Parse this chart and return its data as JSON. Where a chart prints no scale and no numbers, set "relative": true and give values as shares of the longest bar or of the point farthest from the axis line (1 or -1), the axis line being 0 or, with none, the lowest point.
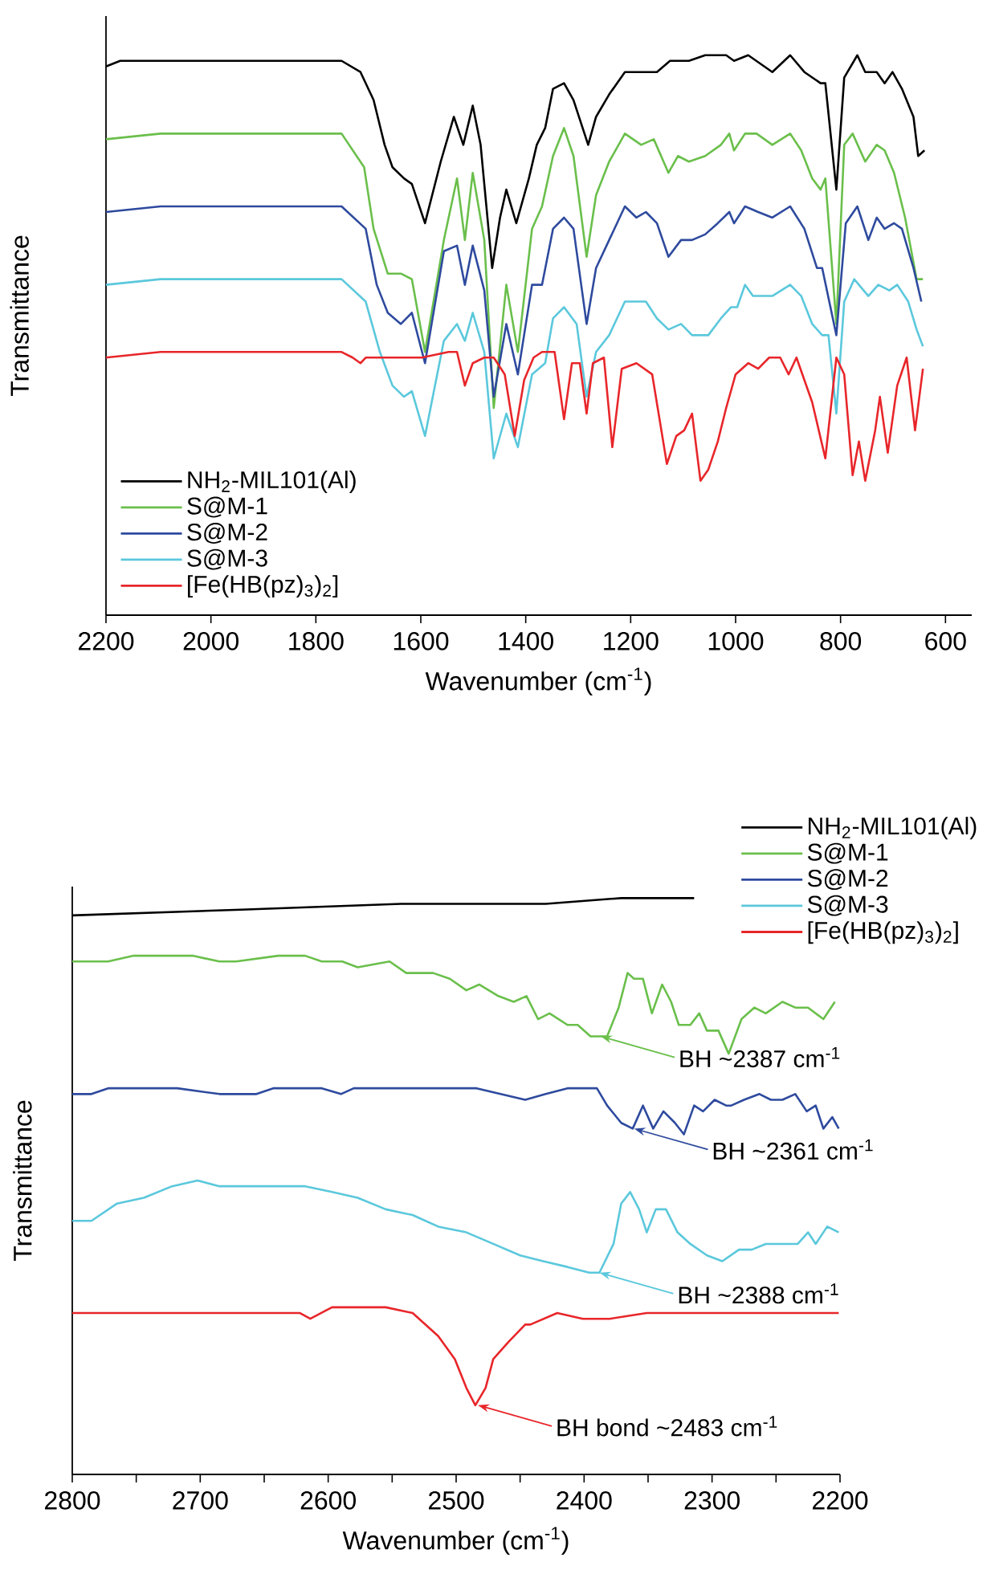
{
  "chart_data": [
    {
      "type": "line",
      "relative": true,
      "xlabel": "Wavenumber (cm$^{-1}$)",
      "ylabel": "Transmittance",
      "xlim": [
        2200,
        550
      ],
      "xticks": [
        2200,
        2000,
        1800,
        1600,
        1400,
        1200,
        1000,
        800,
        600
      ],
      "legend": "bottom left",
      "series": [
        {
          "name": "NH$_{2}$-MIL101(Al)",
          "color": "#000000",
          "x": [
            2200,
            2173,
            2157,
            2096,
            1944,
            1751,
            1715,
            1690,
            1669,
            1654,
            1632,
            1617,
            1592,
            1562,
            1537,
            1519,
            1501,
            1486,
            1464,
            1449,
            1437,
            1418,
            1394,
            1379,
            1363,
            1348,
            1327,
            1309,
            1281,
            1266,
            1241,
            1211,
            1189,
            1171,
            1150,
            1125,
            1089,
            1058,
            1018,
            1003,
            976,
            930,
            896,
            869,
            838,
            829,
            808,
            793,
            768,
            753,
            731,
            716,
            701,
            683,
            661,
            652,
            640
          ],
          "values": [
            0.98,
            0.99,
            0.99,
            0.99,
            0.99,
            0.99,
            0.97,
            0.92,
            0.84,
            0.8,
            0.78,
            0.77,
            0.7,
            0.81,
            0.89,
            0.84,
            0.91,
            0.84,
            0.62,
            0.71,
            0.76,
            0.7,
            0.78,
            0.84,
            0.87,
            0.94,
            0.95,
            0.92,
            0.84,
            0.89,
            0.93,
            0.97,
            0.97,
            0.97,
            0.97,
            0.99,
            0.99,
            1.0,
            1.0,
            0.99,
            1.0,
            0.97,
            1.0,
            0.97,
            0.95,
            0.95,
            0.76,
            0.96,
            1.0,
            0.97,
            0.97,
            0.95,
            0.97,
            0.94,
            0.89,
            0.82,
            0.83
          ]
        },
        {
          "name": "S@M-1",
          "color": "#6abf4b",
          "x": [
            2200,
            2096,
            1944,
            1751,
            1708,
            1690,
            1663,
            1638,
            1617,
            1592,
            1556,
            1531,
            1516,
            1501,
            1479,
            1461,
            1437,
            1415,
            1388,
            1369,
            1348,
            1327,
            1309,
            1284,
            1266,
            1241,
            1211,
            1180,
            1156,
            1128,
            1110,
            1089,
            1058,
            1028,
            1012,
            1003,
            982,
            960,
            930,
            896,
            875,
            854,
            838,
            829,
            808,
            793,
            777,
            753,
            731,
            716,
            698,
            677,
            655,
            643
          ],
          "values": [
            0.85,
            0.86,
            0.86,
            0.86,
            0.8,
            0.69,
            0.61,
            0.61,
            0.6,
            0.47,
            0.67,
            0.78,
            0.67,
            0.79,
            0.67,
            0.37,
            0.59,
            0.47,
            0.69,
            0.73,
            0.82,
            0.87,
            0.82,
            0.64,
            0.75,
            0.81,
            0.86,
            0.84,
            0.85,
            0.79,
            0.82,
            0.81,
            0.82,
            0.84,
            0.86,
            0.83,
            0.86,
            0.86,
            0.84,
            0.86,
            0.83,
            0.78,
            0.76,
            0.78,
            0.52,
            0.84,
            0.86,
            0.81,
            0.84,
            0.83,
            0.79,
            0.71,
            0.6,
            0.6
          ]
        },
        {
          "name": "S@M-2",
          "color": "#2e4a9e",
          "x": [
            2200,
            2096,
            1944,
            1751,
            1705,
            1684,
            1663,
            1638,
            1617,
            1592,
            1556,
            1531,
            1516,
            1501,
            1479,
            1461,
            1437,
            1415,
            1388,
            1369,
            1348,
            1327,
            1309,
            1284,
            1266,
            1241,
            1211,
            1189,
            1171,
            1150,
            1128,
            1104,
            1083,
            1058,
            1034,
            1012,
            1003,
            982,
            957,
            930,
            896,
            869,
            845,
            835,
            808,
            790,
            768,
            747,
            731,
            716,
            698,
            683,
            661,
            646
          ],
          "values": [
            0.72,
            0.73,
            0.73,
            0.73,
            0.69,
            0.59,
            0.54,
            0.52,
            0.54,
            0.45,
            0.65,
            0.66,
            0.59,
            0.66,
            0.58,
            0.39,
            0.52,
            0.43,
            0.59,
            0.59,
            0.69,
            0.71,
            0.69,
            0.52,
            0.62,
            0.67,
            0.73,
            0.71,
            0.72,
            0.7,
            0.64,
            0.67,
            0.67,
            0.68,
            0.7,
            0.72,
            0.7,
            0.73,
            0.72,
            0.71,
            0.73,
            0.69,
            0.62,
            0.62,
            0.5,
            0.7,
            0.73,
            0.67,
            0.71,
            0.69,
            0.7,
            0.69,
            0.62,
            0.56
          ]
        },
        {
          "name": "S@M-3",
          "color": "#5bc8dc",
          "x": [
            2200,
            2096,
            1944,
            1751,
            1705,
            1678,
            1654,
            1632,
            1617,
            1592,
            1556,
            1531,
            1516,
            1501,
            1479,
            1461,
            1437,
            1415,
            1388,
            1363,
            1348,
            1327,
            1303,
            1284,
            1266,
            1241,
            1211,
            1189,
            1171,
            1150,
            1128,
            1104,
            1083,
            1052,
            1028,
            1009,
            997,
            982,
            967,
            930,
            896,
            875,
            854,
            835,
            823,
            808,
            793,
            774,
            747,
            728,
            707,
            692,
            671,
            655,
            643
          ],
          "values": [
            0.59,
            0.6,
            0.6,
            0.6,
            0.56,
            0.47,
            0.41,
            0.39,
            0.4,
            0.32,
            0.49,
            0.52,
            0.49,
            0.54,
            0.47,
            0.28,
            0.36,
            0.3,
            0.43,
            0.45,
            0.53,
            0.55,
            0.52,
            0.39,
            0.47,
            0.5,
            0.56,
            0.56,
            0.56,
            0.53,
            0.51,
            0.52,
            0.5,
            0.5,
            0.53,
            0.55,
            0.55,
            0.59,
            0.57,
            0.57,
            0.59,
            0.57,
            0.52,
            0.5,
            0.5,
            0.36,
            0.56,
            0.6,
            0.57,
            0.59,
            0.58,
            0.59,
            0.56,
            0.51,
            0.48
          ]
        },
        {
          "name": "[Fe(HB(pz)$_{3}$)$_{2}$]",
          "color": "#e8262a",
          "x": [
            2200,
            2096,
            1944,
            1751,
            1730,
            1715,
            1705,
            1669,
            1629,
            1598,
            1547,
            1531,
            1516,
            1501,
            1479,
            1461,
            1440,
            1421,
            1403,
            1385,
            1369,
            1345,
            1327,
            1312,
            1297,
            1284,
            1272,
            1251,
            1235,
            1217,
            1189,
            1159,
            1131,
            1113,
            1098,
            1083,
            1067,
            1052,
            1034,
            1018,
            1000,
            976,
            957,
            936,
            915,
            899,
            884,
            854,
            829,
            808,
            793,
            777,
            765,
            753,
            734,
            725,
            710,
            692,
            674,
            658,
            643
          ],
          "values": [
            0.46,
            0.47,
            0.47,
            0.47,
            0.46,
            0.45,
            0.46,
            0.46,
            0.46,
            0.46,
            0.47,
            0.47,
            0.41,
            0.45,
            0.46,
            0.46,
            0.43,
            0.32,
            0.42,
            0.46,
            0.47,
            0.47,
            0.35,
            0.45,
            0.45,
            0.36,
            0.45,
            0.46,
            0.3,
            0.44,
            0.45,
            0.43,
            0.27,
            0.32,
            0.33,
            0.36,
            0.24,
            0.26,
            0.31,
            0.37,
            0.43,
            0.45,
            0.44,
            0.46,
            0.46,
            0.43,
            0.46,
            0.38,
            0.28,
            0.46,
            0.43,
            0.25,
            0.31,
            0.24,
            0.33,
            0.39,
            0.29,
            0.41,
            0.46,
            0.33,
            0.44
          ]
        }
      ]
    },
    {
      "type": "line",
      "relative": true,
      "xlabel": "Wavenumber (cm$^{-1}$)",
      "ylabel": "Transmittance",
      "xlim": [
        2800,
        2200
      ],
      "xticks": [
        2800,
        {
          "value": 2750,
          "label": null
        },
        2700,
        {
          "value": 2650,
          "label": null
        },
        2600,
        {
          "value": 2550,
          "label": null
        },
        2500,
        {
          "value": 2450,
          "label": null
        },
        2400,
        {
          "value": 2350,
          "label": null
        },
        2300,
        {
          "value": 2250,
          "label": null
        },
        2200
      ],
      "legend": "top right",
      "annotations": [
        {
          "text": "BH ~2387 cm$^{-1}$",
          "x": 2387,
          "y": 0.76
        },
        {
          "text": "BH ~2361 cm$^{-1}$",
          "x": 2361,
          "y": 0.6
        },
        {
          "text": "BH ~2388 cm$^{-1}$",
          "x": 2388,
          "y": 0.35
        },
        {
          "text": "BH bond ~2483 cm$^{-1}$",
          "x": 2483,
          "y": 0.12
        }
      ],
      "series": [
        {
          "name": "NH$_{2}$-MIL101(Al)",
          "color": "#000000",
          "x": [
            2800,
            2668,
            2543,
            2430,
            2371,
            2346,
            2314
          ],
          "values": [
            0.97,
            0.98,
            0.99,
            0.99,
            1.0,
            1.0,
            1.0
          ]
        },
        {
          "name": "S@M-1",
          "color": "#6abf4b",
          "x": [
            2800,
            2785,
            2781,
            2772,
            2752,
            2727,
            2706,
            2685,
            2672,
            2639,
            2618,
            2605,
            2589,
            2577,
            2552,
            2539,
            2518,
            2505,
            2492,
            2482,
            2467,
            2455,
            2445,
            2436,
            2427,
            2413,
            2405,
            2395,
            2382,
            2373,
            2366,
            2361,
            2354,
            2347,
            2339,
            2332,
            2326,
            2317,
            2310,
            2304,
            2295,
            2287,
            2277,
            2267,
            2258,
            2245,
            2235,
            2225,
            2213,
            2204
          ],
          "values": [
            0.89,
            0.89,
            0.89,
            0.89,
            0.9,
            0.9,
            0.9,
            0.89,
            0.89,
            0.9,
            0.9,
            0.89,
            0.89,
            0.88,
            0.89,
            0.87,
            0.87,
            0.86,
            0.84,
            0.85,
            0.83,
            0.82,
            0.83,
            0.79,
            0.8,
            0.78,
            0.78,
            0.76,
            0.76,
            0.81,
            0.87,
            0.86,
            0.86,
            0.8,
            0.85,
            0.82,
            0.78,
            0.78,
            0.8,
            0.77,
            0.77,
            0.73,
            0.79,
            0.81,
            0.8,
            0.82,
            0.81,
            0.81,
            0.79,
            0.82
          ]
        },
        {
          "name": "S@M-2",
          "color": "#2e4a9e",
          "x": [
            2800,
            2785,
            2772,
            2744,
            2718,
            2685,
            2656,
            2643,
            2605,
            2590,
            2580,
            2555,
            2514,
            2484,
            2446,
            2430,
            2413,
            2390,
            2382,
            2371,
            2362,
            2354,
            2346,
            2338,
            2329,
            2322,
            2314,
            2307,
            2298,
            2289,
            2285,
            2275,
            2263,
            2254,
            2245,
            2235,
            2226,
            2219,
            2213,
            2206,
            2201
          ],
          "values": [
            0.66,
            0.66,
            0.67,
            0.67,
            0.67,
            0.66,
            0.66,
            0.67,
            0.67,
            0.66,
            0.67,
            0.67,
            0.67,
            0.67,
            0.65,
            0.66,
            0.67,
            0.67,
            0.64,
            0.61,
            0.6,
            0.64,
            0.6,
            0.63,
            0.61,
            0.59,
            0.64,
            0.63,
            0.65,
            0.64,
            0.64,
            0.65,
            0.66,
            0.65,
            0.65,
            0.66,
            0.63,
            0.64,
            0.6,
            0.62,
            0.6
          ]
        },
        {
          "name": "S@M-3",
          "color": "#5bc8dc",
          "x": [
            2800,
            2785,
            2765,
            2744,
            2722,
            2702,
            2685,
            2659,
            2639,
            2618,
            2597,
            2577,
            2555,
            2534,
            2514,
            2492,
            2471,
            2450,
            2432,
            2413,
            2396,
            2388,
            2377,
            2371,
            2364,
            2357,
            2351,
            2344,
            2336,
            2327,
            2317,
            2304,
            2292,
            2279,
            2269,
            2258,
            2245,
            2233,
            2225,
            2219,
            2210,
            2201
          ],
          "values": [
            0.44,
            0.44,
            0.47,
            0.48,
            0.5,
            0.51,
            0.5,
            0.5,
            0.5,
            0.5,
            0.49,
            0.48,
            0.46,
            0.45,
            0.43,
            0.42,
            0.4,
            0.38,
            0.37,
            0.36,
            0.35,
            0.35,
            0.4,
            0.47,
            0.49,
            0.46,
            0.42,
            0.46,
            0.46,
            0.42,
            0.4,
            0.38,
            0.37,
            0.39,
            0.39,
            0.4,
            0.4,
            0.4,
            0.42,
            0.4,
            0.43,
            0.42
          ]
        },
        {
          "name": "[Fe(HB(pz)$_{3}$)$_{2}$]",
          "color": "#e8262a",
          "x": [
            2800,
            2765,
            2702,
            2631,
            2622,
            2614,
            2597,
            2555,
            2534,
            2514,
            2501,
            2492,
            2485,
            2477,
            2471,
            2459,
            2446,
            2442,
            2421,
            2401,
            2380,
            2351,
            2288,
            2201
          ],
          "values": [
            0.28,
            0.28,
            0.28,
            0.28,
            0.28,
            0.27,
            0.29,
            0.29,
            0.28,
            0.24,
            0.2,
            0.15,
            0.12,
            0.15,
            0.2,
            0.23,
            0.26,
            0.26,
            0.28,
            0.27,
            0.27,
            0.28,
            0.28,
            0.28
          ]
        }
      ]
    }
  ]
}
